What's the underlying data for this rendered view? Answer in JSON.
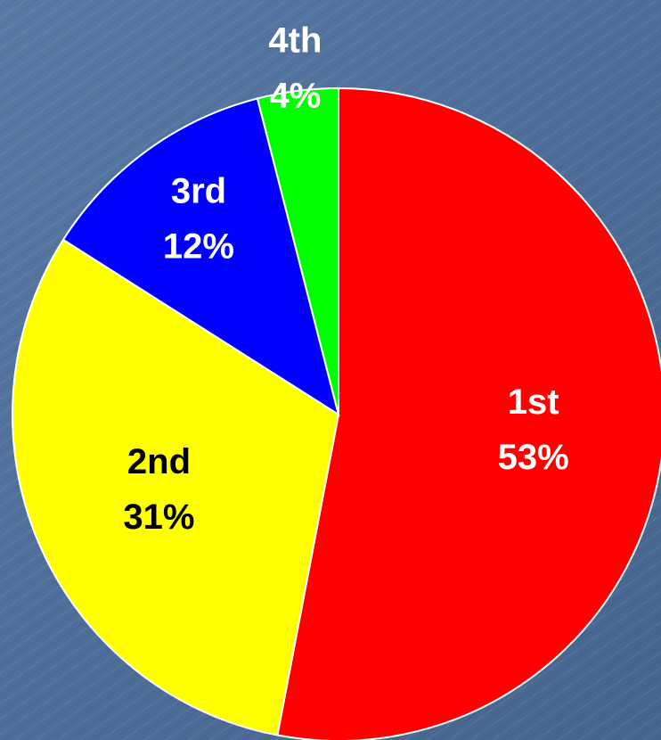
{
  "chart_data": {
    "type": "pie",
    "categories": [
      "1st",
      "2nd",
      "3rd",
      "4th"
    ],
    "values": [
      53,
      31,
      12,
      4
    ],
    "value_labels": [
      "53%",
      "31%",
      "12%",
      "4%"
    ],
    "colors": [
      "#ff0000",
      "#ffff00",
      "#0000ff",
      "#00ff00"
    ]
  }
}
